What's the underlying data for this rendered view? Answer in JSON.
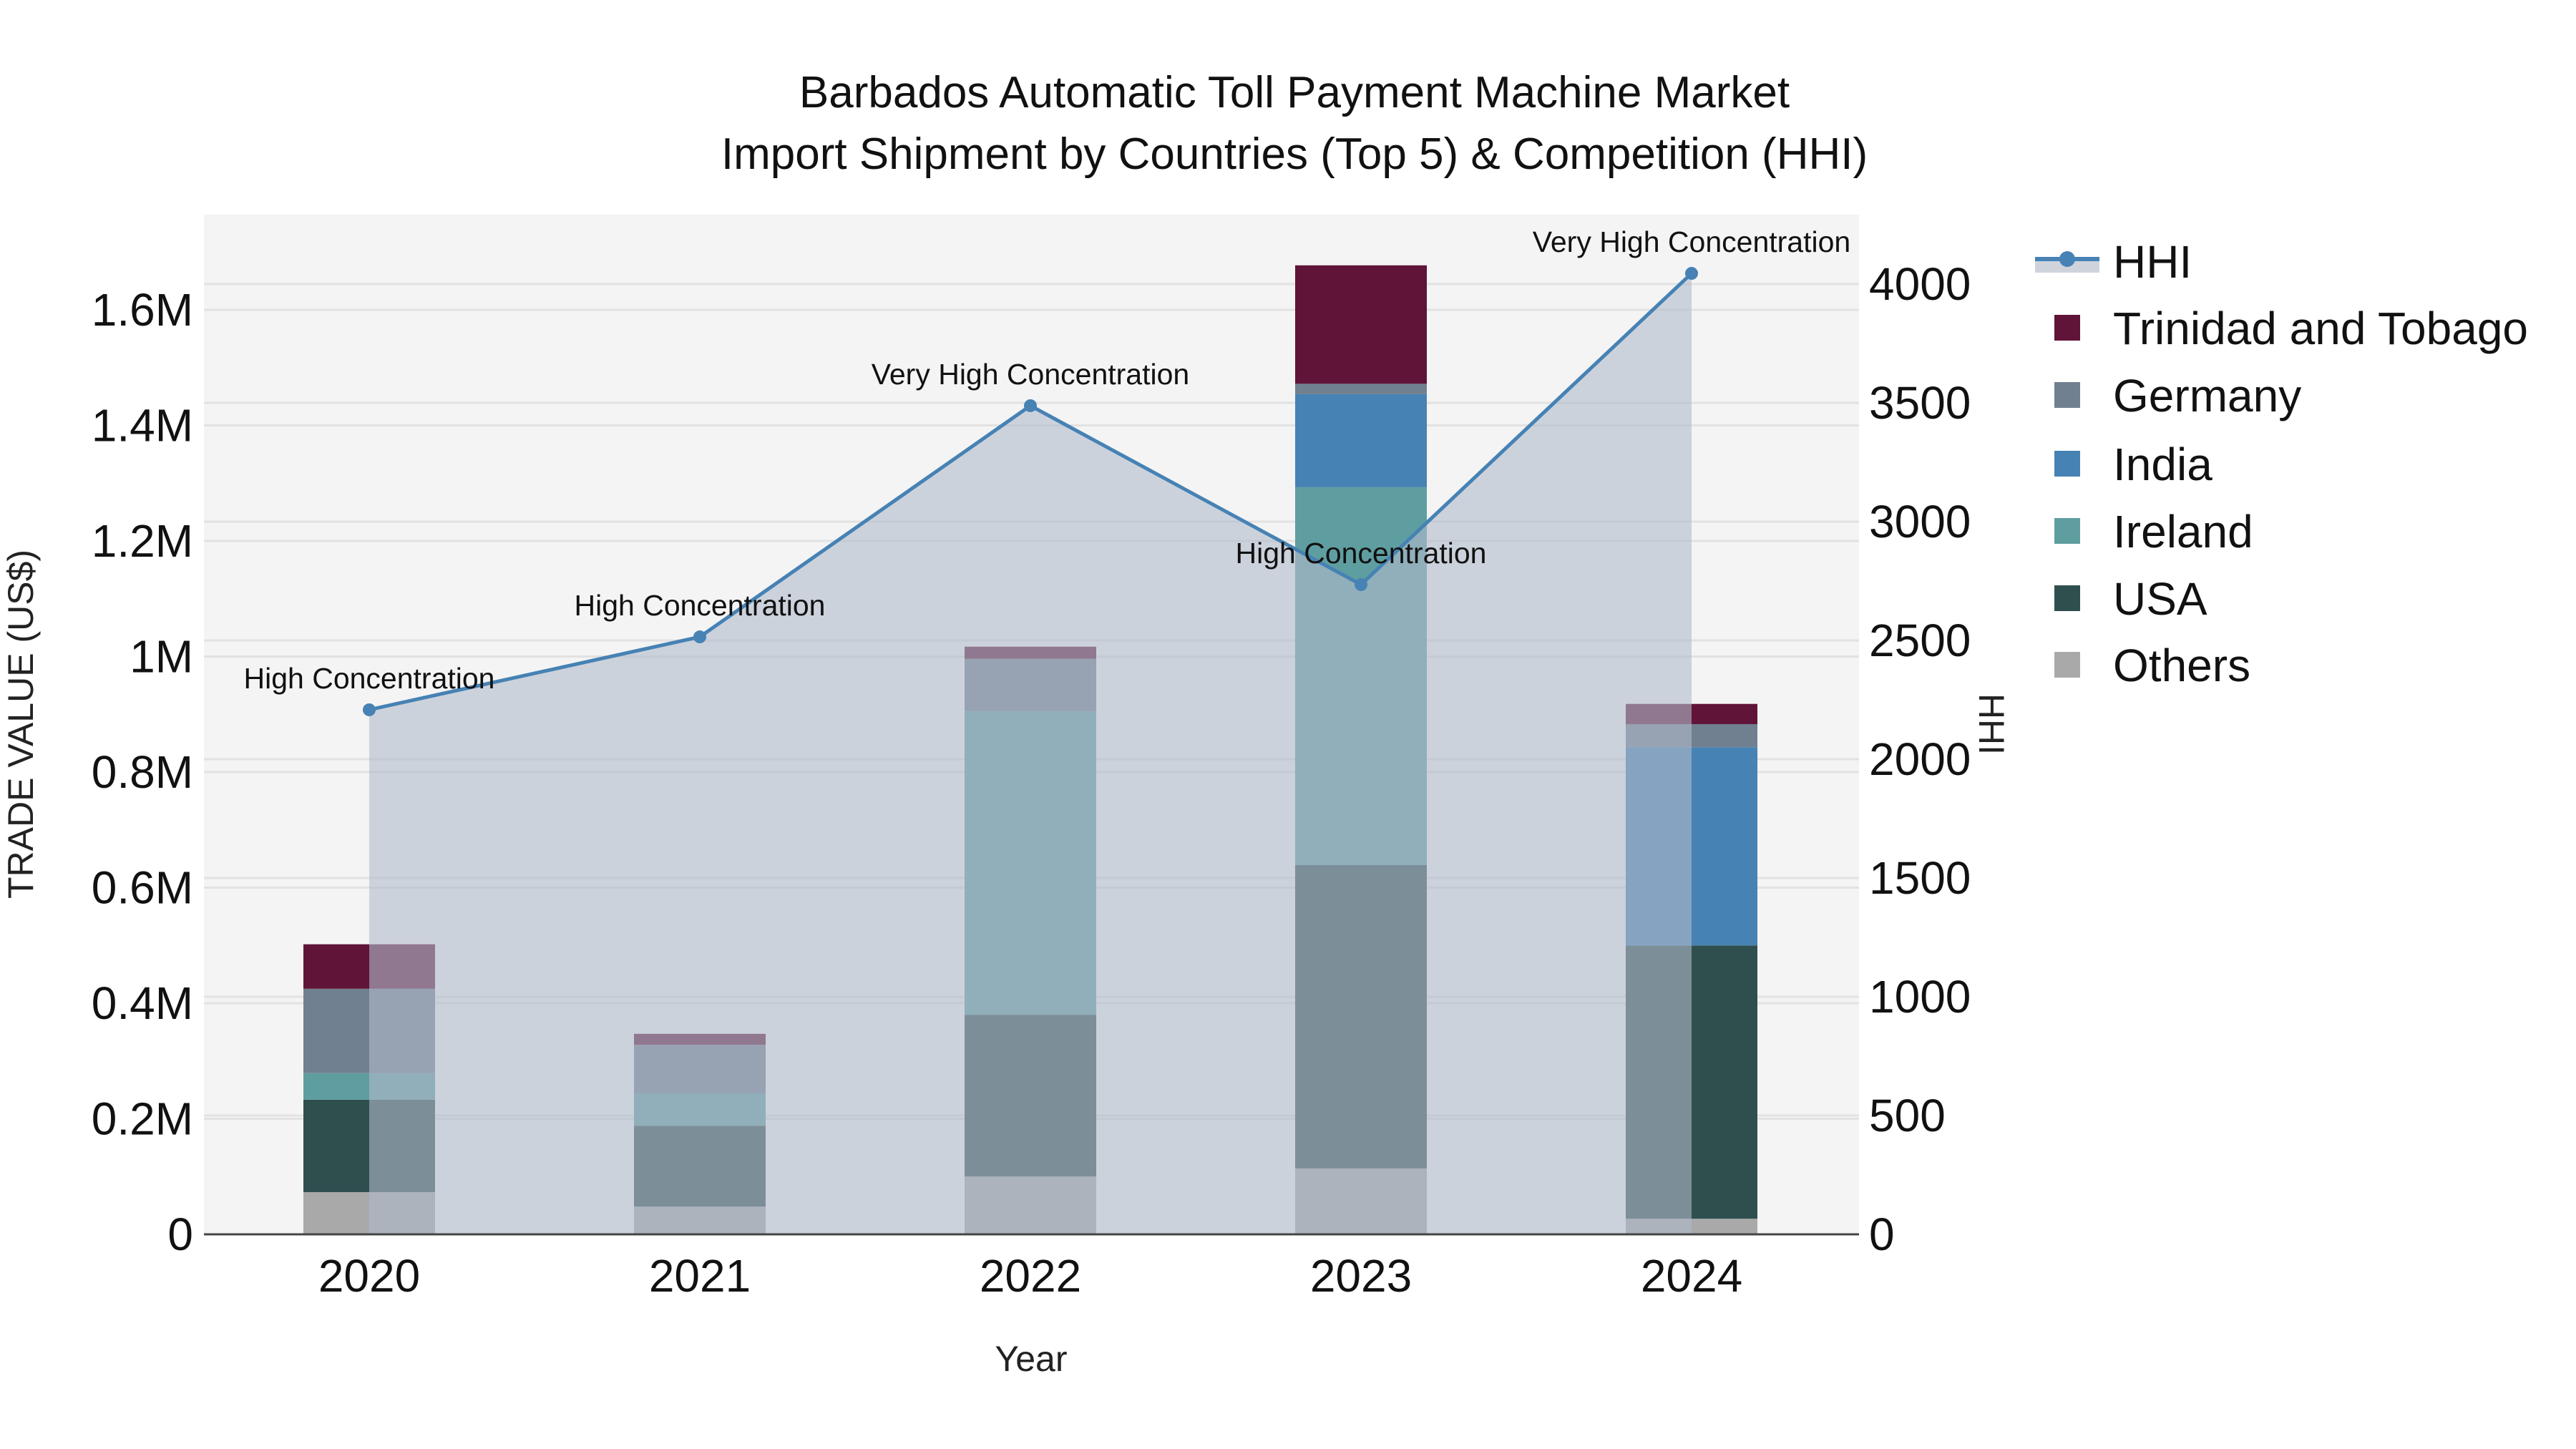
{
  "title": {
    "line1": "Barbados Automatic Toll Payment Machine Market",
    "line2": "Import Shipment by Countries (Top 5) & Competition (HHI)"
  },
  "axes": {
    "x_title": "Year",
    "y_left_title": "TRADE VALUE (US$)",
    "y_right_title": "HHI",
    "y_left_ticks": [
      "0",
      "0.2M",
      "0.4M",
      "0.6M",
      "0.8M",
      "1M",
      "1.2M",
      "1.4M",
      "1.6M"
    ],
    "y_right_ticks": [
      "0",
      "500",
      "1000",
      "1500",
      "2000",
      "2500",
      "3000",
      "3500",
      "4000"
    ]
  },
  "legend": {
    "items": [
      {
        "label": "HHI",
        "type": "line-area",
        "color": "#4682b4"
      },
      {
        "label": "Trinidad and Tobago",
        "type": "swatch",
        "color": "#601437"
      },
      {
        "label": "Germany",
        "type": "swatch",
        "color": "#708090"
      },
      {
        "label": "India",
        "type": "swatch",
        "color": "#4682b4"
      },
      {
        "label": "Ireland",
        "type": "swatch",
        "color": "#5f9ea0"
      },
      {
        "label": "USA",
        "type": "swatch",
        "color": "#2f4f4f"
      },
      {
        "label": "Others",
        "type": "swatch",
        "color": "#a9a9a9"
      }
    ]
  },
  "colors": {
    "plot_bg": "#f4f4f4",
    "grid": "#e2e2e2",
    "hhi_line": "#4682b4",
    "hhi_fill": "rgba(176,186,204,0.6)",
    "axis_line": "#444444"
  },
  "chart_data": {
    "type": "bar",
    "title": "Barbados Automatic Toll Payment Machine Market — Import Shipment by Countries (Top 5) & Competition (HHI)",
    "xlabel": "Year",
    "ylabel": "TRADE VALUE (US$)",
    "y2label": "HHI",
    "stacked": true,
    "categories": [
      "2020",
      "2021",
      "2022",
      "2023",
      "2024"
    ],
    "ylim": [
      0,
      1760000
    ],
    "y2lim": [
      0,
      4300
    ],
    "series": [
      {
        "name": "Others",
        "color": "#a9a9a9",
        "values": [
          73000,
          48000,
          100000,
          114000,
          27000
        ]
      },
      {
        "name": "USA",
        "color": "#2f4f4f",
        "values": [
          160000,
          140000,
          280000,
          525000,
          473000
        ]
      },
      {
        "name": "Ireland",
        "color": "#5f9ea0",
        "values": [
          46000,
          56000,
          525000,
          654000,
          0
        ]
      },
      {
        "name": "India",
        "color": "#4682b4",
        "values": [
          0,
          0,
          0,
          161000,
          343000
        ]
      },
      {
        "name": "Germany",
        "color": "#708090",
        "values": [
          146000,
          84000,
          91000,
          18000,
          40000
        ]
      },
      {
        "name": "Trinidad and Tobago",
        "color": "#601437",
        "values": [
          77000,
          19000,
          21000,
          205000,
          35000
        ]
      }
    ],
    "line_series": {
      "name": "HHI",
      "axis": "y2",
      "type": "line+area",
      "values": [
        2208,
        2515,
        3488,
        2735,
        4045
      ],
      "annotations": [
        "High Concentration",
        "High Concentration",
        "Very High Concentration",
        "High Concentration",
        "Very High Concentration"
      ]
    },
    "legend_position": "right",
    "grid": true
  }
}
